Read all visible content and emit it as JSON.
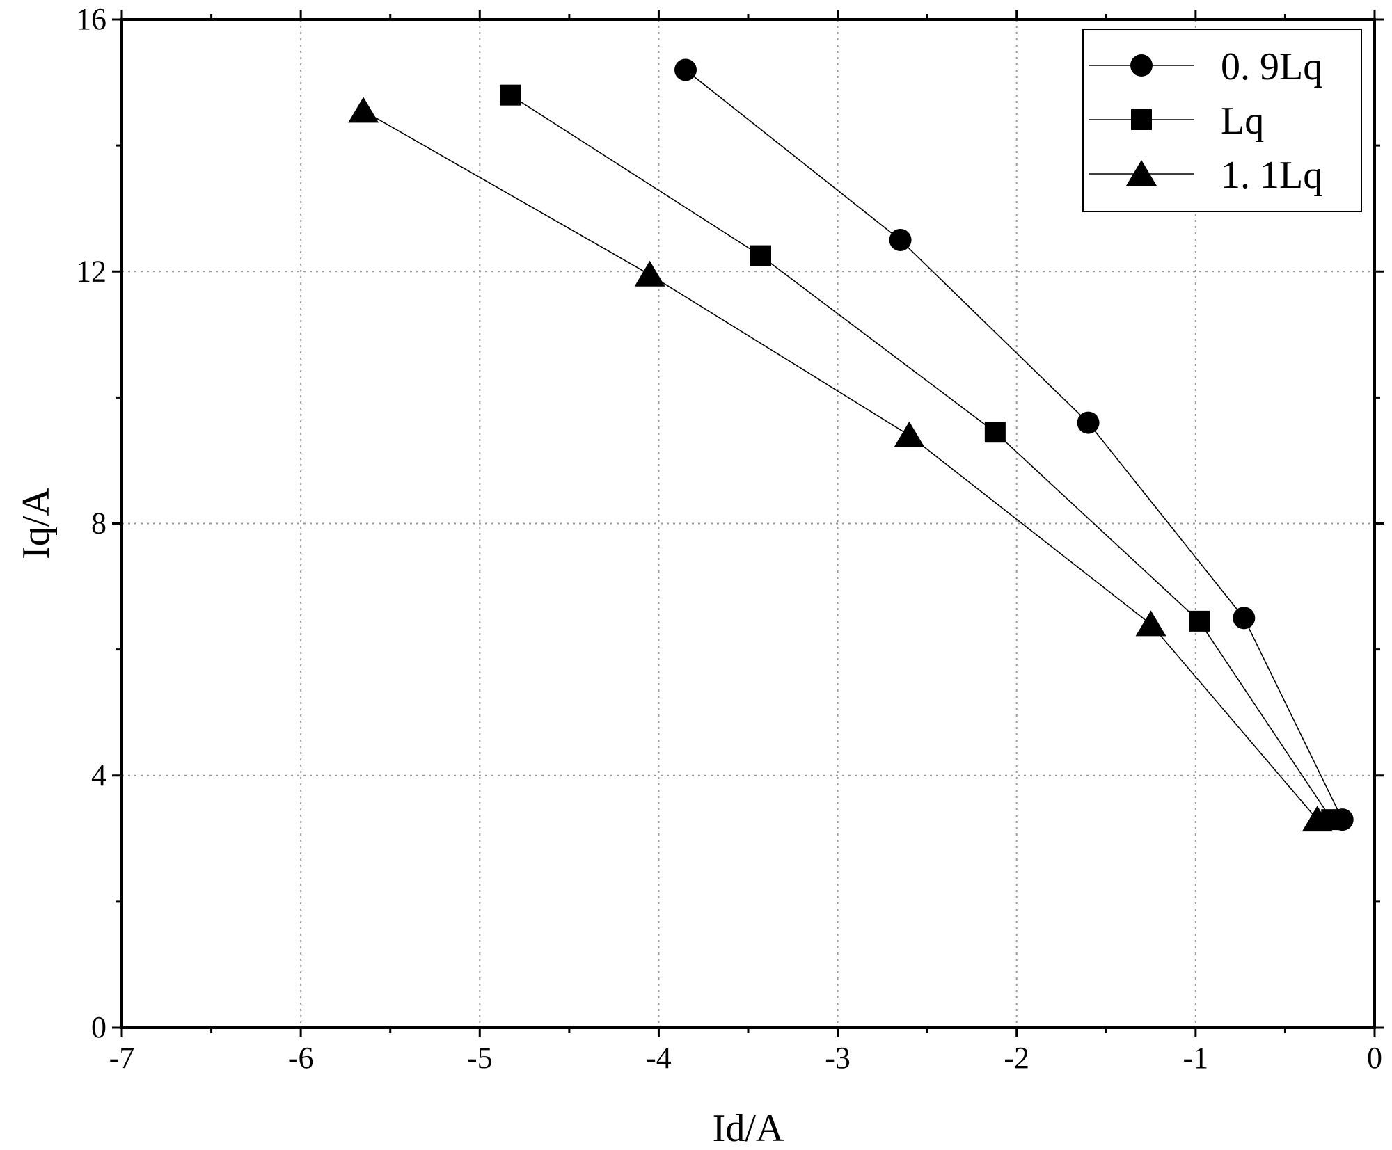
{
  "chart_data": {
    "type": "line",
    "xlabel": "Id/A",
    "ylabel": "Iq/A",
    "xlim": [
      -7,
      0
    ],
    "ylim": [
      0,
      16
    ],
    "xticks": [
      -7,
      -6,
      -5,
      -4,
      -3,
      -2,
      -1,
      0
    ],
    "xtick_labels": [
      "-7",
      "-6",
      "-5",
      "-4",
      "-3",
      "-2",
      "-1",
      "0"
    ],
    "yticks": [
      0,
      4,
      8,
      12,
      16
    ],
    "ytick_labels": [
      "0",
      "4",
      "8",
      "12",
      "16"
    ],
    "grid": true,
    "legend_position": "top-right",
    "series": [
      {
        "name": "0. 9Lq",
        "marker": "circle",
        "x": [
          -3.85,
          -2.65,
          -1.6,
          -0.73,
          -0.18
        ],
        "y": [
          15.2,
          12.5,
          9.6,
          6.5,
          3.3
        ]
      },
      {
        "name": "Lq",
        "marker": "square",
        "x": [
          -4.83,
          -3.43,
          -2.12,
          -0.98,
          -0.24
        ],
        "y": [
          14.8,
          12.25,
          9.45,
          6.45,
          3.3
        ]
      },
      {
        "name": "1. 1Lq",
        "marker": "triangle",
        "x": [
          -5.65,
          -4.05,
          -2.6,
          -1.25,
          -0.32
        ],
        "y": [
          14.55,
          11.95,
          9.4,
          6.4,
          3.3
        ]
      }
    ]
  }
}
